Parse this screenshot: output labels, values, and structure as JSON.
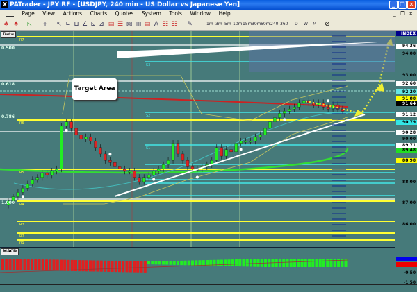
{
  "window": {
    "title": "PATrader - JPY RF - [USDJPY, 240 min - US Dollar vs Japanese Yen]",
    "minimize": "_",
    "restore": "❐",
    "close": "✕"
  },
  "menu": [
    "Page",
    "View",
    "Actions",
    "Charts",
    "Quotes",
    "System",
    "Tools",
    "Window",
    "Help"
  ],
  "mdi_controls": [
    "_",
    "❐",
    "×"
  ],
  "timeframes": [
    "1m",
    "3m",
    "5m",
    "10m",
    "15m",
    "30m",
    "60m",
    "240",
    "360",
    "D",
    "W",
    "M"
  ],
  "chart": {
    "data_tag": "Data",
    "index_tag": "INDEX",
    "annotation": "Target Area",
    "fib_labels": [
      "0.500",
      "0.618",
      "0.786",
      "1.000"
    ],
    "level_labels": [
      "R7",
      "R6",
      "R5",
      "R4",
      "R3",
      "R2",
      "R1",
      "S3",
      "S2",
      "S1"
    ],
    "macd_tag": "MACD",
    "price_axis": [
      {
        "text": "94.36",
        "bg": "#ffffff",
        "fg": "#000000"
      },
      {
        "text": "94.00"
      },
      {
        "text": "93.00"
      },
      {
        "text": "92.60",
        "bg": "#ffffff",
        "fg": "#000000"
      },
      {
        "text": "92.20",
        "bg": "#66e6e6",
        "fg": "#000000"
      },
      {
        "text": "91.88",
        "bg": "#ffff00",
        "fg": "#000000"
      },
      {
        "text": "91.64",
        "bg": "#000000",
        "fg": "#ffffff"
      },
      {
        "text": "91.12",
        "bg": "#ffffff",
        "fg": "#000000"
      },
      {
        "text": "90.79",
        "bg": "#33e6e6",
        "fg": "#000000"
      },
      {
        "text": "90.28",
        "bg": "#ffffff",
        "fg": "#000000"
      },
      {
        "text": "90.00"
      },
      {
        "text": "89.71",
        "bg": "#ffffff",
        "fg": "#000000"
      },
      {
        "text": "89.48",
        "bg": "#22dd22",
        "fg": "#000000"
      },
      {
        "text": "88.98",
        "bg": "#ffff00",
        "fg": "#000000"
      },
      {
        "text": "88.00"
      },
      {
        "text": "87.00"
      },
      {
        "text": "86.00"
      }
    ],
    "macd_axis": [
      "-0.50",
      "-1.50"
    ],
    "closes": [
      87.1,
      87.3,
      87.5,
      87.7,
      87.9,
      88.1,
      88.2,
      88.4,
      88.3,
      88.5,
      88.6,
      90.6,
      90.8,
      90.5,
      90.2,
      90.0,
      90.1,
      89.9,
      89.6,
      89.3,
      89.0,
      88.9,
      88.7,
      88.6,
      88.5,
      88.5,
      88.2,
      88.0,
      88.2,
      88.3,
      88.5,
      88.6,
      88.8,
      89.0,
      89.8,
      89.3,
      89.0,
      88.7,
      88.6,
      88.6,
      88.7,
      88.8,
      89.0,
      89.6,
      89.2,
      89.5,
      89.4,
      89.8,
      89.9,
      89.9,
      89.9,
      90.1,
      90.2,
      90.5,
      90.8,
      91.0,
      91.2,
      91.3,
      91.4,
      91.5,
      91.7,
      91.8,
      91.7,
      91.6,
      91.7,
      91.5,
      91.4,
      91.6,
      91.4,
      91.3
    ],
    "colors": {
      "background": "#467a7a",
      "up": "#22ee22",
      "down": "#dd2222",
      "fib": "#ffffff",
      "pivot_r": "#ffff33",
      "pivot_s": "#44e6e6",
      "trend": "#ffffff",
      "target": "#eeee33"
    }
  }
}
